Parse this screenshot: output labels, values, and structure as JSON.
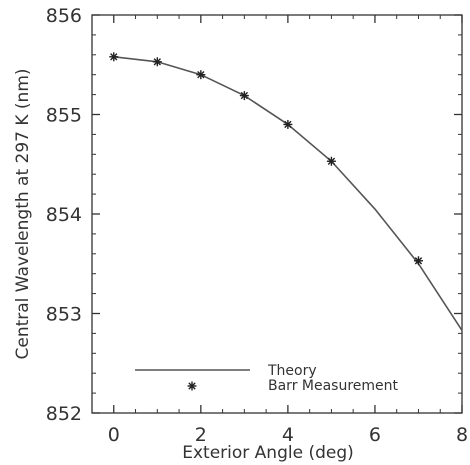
{
  "chart_data": {
    "type": "line",
    "title": "",
    "xlabel": "Exterior Angle (deg)",
    "ylabel": "Central Wavelength at 297 K (nm)",
    "xlim": [
      -0.5,
      8
    ],
    "ylim": [
      852,
      856
    ],
    "x_ticks": [
      "0",
      "2",
      "4",
      "6",
      "8"
    ],
    "y_ticks": [
      "852",
      "853",
      "854",
      "855",
      "856"
    ],
    "grid": false,
    "legend_position": "bottom-left",
    "series": [
      {
        "name": "Theory",
        "style": "line",
        "x": [
          0,
          1,
          2,
          3,
          4,
          5,
          6,
          7,
          8
        ],
        "y": [
          855.58,
          855.53,
          855.4,
          855.19,
          854.9,
          854.53,
          854.05,
          853.5,
          852.83
        ]
      },
      {
        "name": "Barr Measurement",
        "style": "marker",
        "x": [
          0,
          1,
          2,
          3,
          4,
          5,
          7
        ],
        "y": [
          855.58,
          855.53,
          855.4,
          855.19,
          854.9,
          854.53,
          853.53
        ]
      }
    ]
  }
}
